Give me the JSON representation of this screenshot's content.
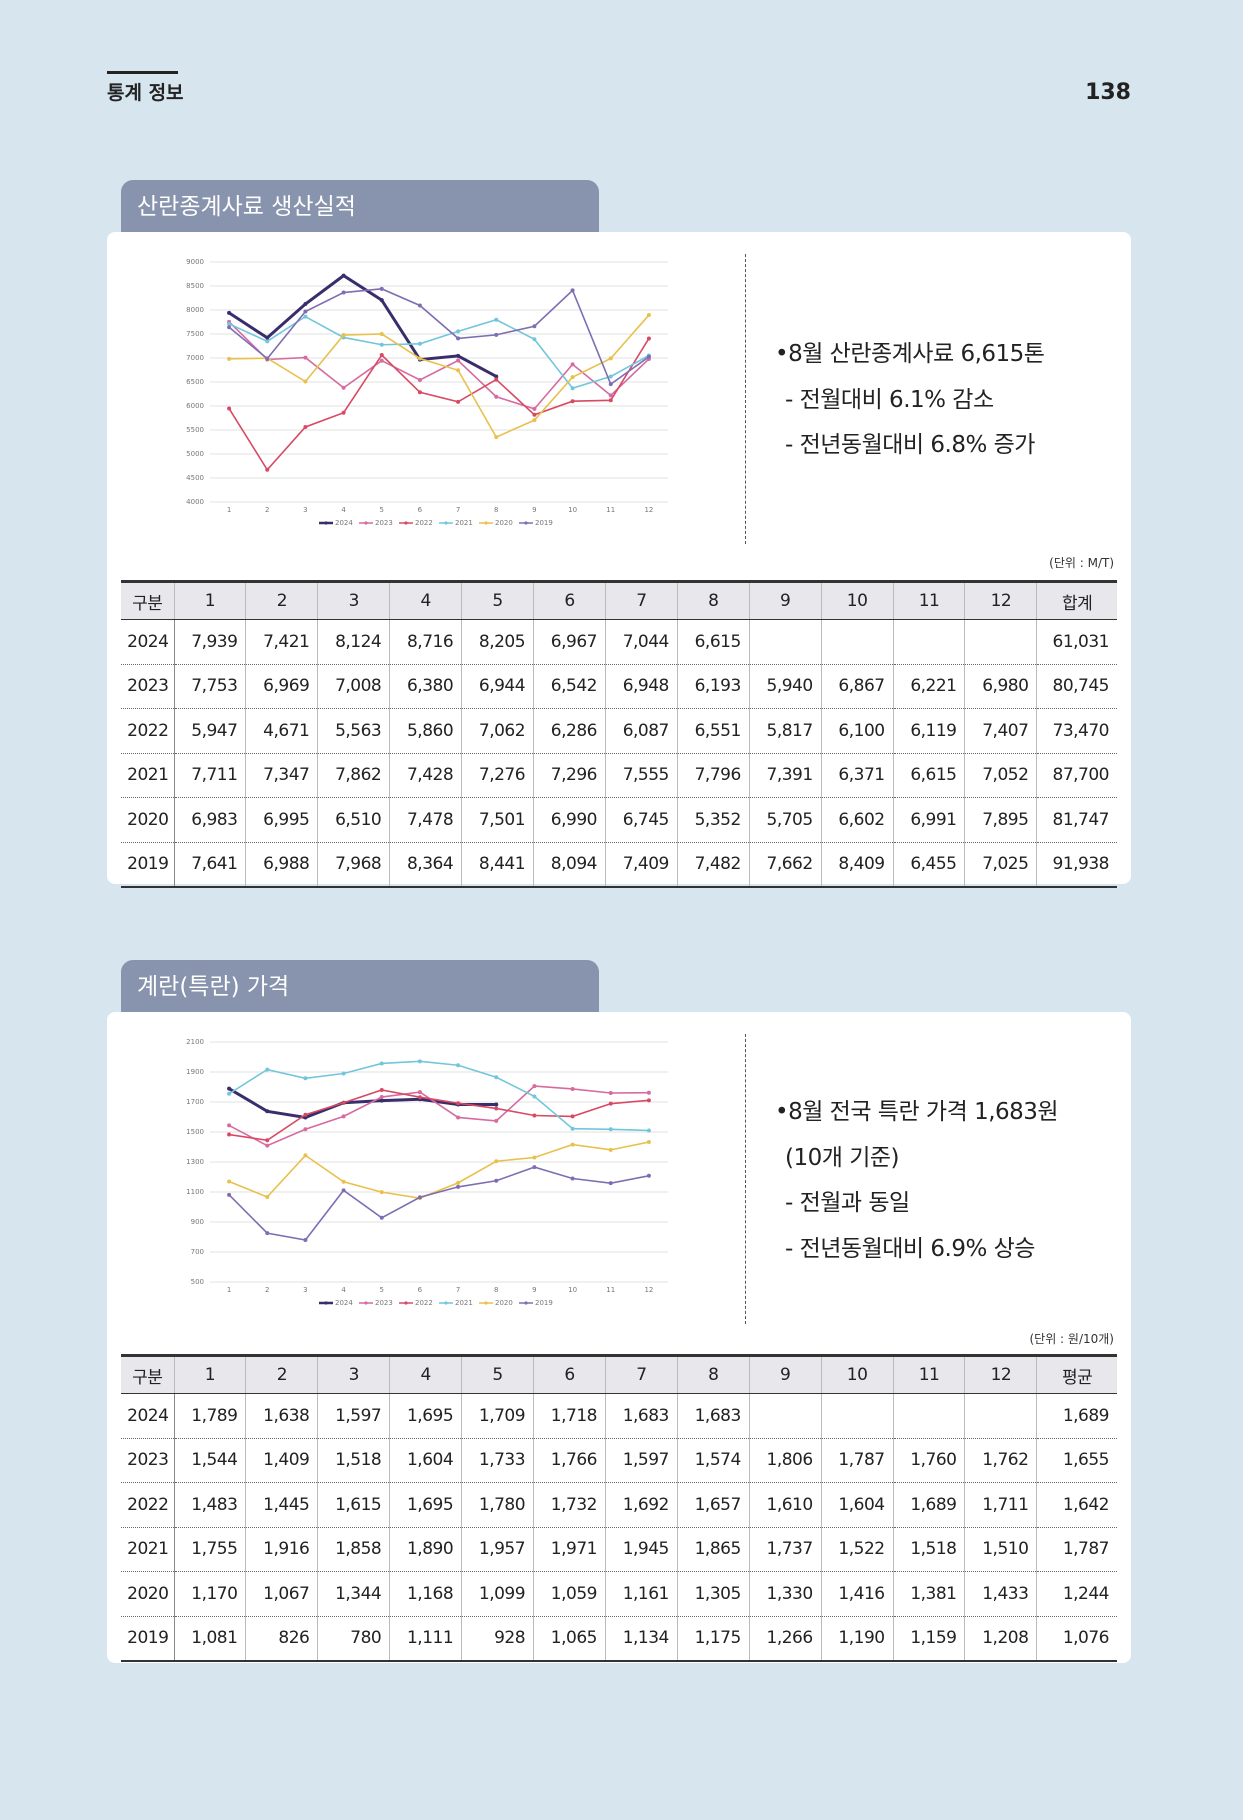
{
  "header": {
    "title": "통계 정보",
    "page": "138"
  },
  "chart_data": [
    {
      "type": "line",
      "categories": [
        "1",
        "2",
        "3",
        "4",
        "5",
        "6",
        "7",
        "8",
        "9",
        "10",
        "11",
        "12"
      ],
      "ylim": [
        4000,
        9000
      ],
      "yticks": [
        4000,
        4500,
        5000,
        5500,
        6000,
        6500,
        7000,
        7500,
        8000,
        8500,
        9000
      ],
      "grid": true,
      "legend": "bottom",
      "series": [
        {
          "name": "2024",
          "color": "#3a2d6b",
          "values": [
            7939,
            7421,
            8124,
            8716,
            8205,
            6967,
            7044,
            6615,
            null,
            null,
            null,
            null
          ]
        },
        {
          "name": "2023",
          "color": "#d56ba0",
          "values": [
            7753,
            6969,
            7008,
            6380,
            6944,
            6542,
            6948,
            6193,
            5940,
            6867,
            6221,
            6980
          ]
        },
        {
          "name": "2022",
          "color": "#d84a63",
          "values": [
            5947,
            4671,
            5563,
            5860,
            7062,
            6286,
            6087,
            6551,
            5817,
            6100,
            6119,
            7407
          ]
        },
        {
          "name": "2021",
          "color": "#72c6dc",
          "values": [
            7711,
            7347,
            7862,
            7428,
            7276,
            7296,
            7555,
            7796,
            7391,
            6371,
            6615,
            7052
          ]
        },
        {
          "name": "2020",
          "color": "#e8c14c",
          "values": [
            6983,
            6995,
            6510,
            7478,
            7501,
            6990,
            6745,
            5352,
            5705,
            6602,
            6991,
            7895
          ]
        },
        {
          "name": "2019",
          "color": "#7f6db3",
          "values": [
            7641,
            6988,
            7968,
            8364,
            8441,
            8094,
            7409,
            7482,
            7662,
            8409,
            6455,
            7025
          ]
        }
      ]
    },
    {
      "type": "line",
      "categories": [
        "1",
        "2",
        "3",
        "4",
        "5",
        "6",
        "7",
        "8",
        "9",
        "10",
        "11",
        "12"
      ],
      "ylim": [
        500,
        2100
      ],
      "yticks": [
        500,
        700,
        900,
        1100,
        1300,
        1500,
        1700,
        1900,
        2100
      ],
      "grid": true,
      "legend": "bottom",
      "series": [
        {
          "name": "2024",
          "color": "#3a2d6b",
          "values": [
            1789,
            1638,
            1597,
            1695,
            1709,
            1718,
            1683,
            1683,
            null,
            null,
            null,
            null
          ]
        },
        {
          "name": "2023",
          "color": "#d56ba0",
          "values": [
            1544,
            1409,
            1518,
            1604,
            1733,
            1766,
            1597,
            1574,
            1806,
            1787,
            1760,
            1762
          ]
        },
        {
          "name": "2022",
          "color": "#d84a63",
          "values": [
            1483,
            1445,
            1615,
            1695,
            1780,
            1732,
            1692,
            1657,
            1610,
            1604,
            1689,
            1711
          ]
        },
        {
          "name": "2021",
          "color": "#72c6dc",
          "values": [
            1755,
            1916,
            1858,
            1890,
            1957,
            1971,
            1945,
            1865,
            1737,
            1522,
            1518,
            1510
          ]
        },
        {
          "name": "2020",
          "color": "#e8c14c",
          "values": [
            1170,
            1067,
            1344,
            1168,
            1099,
            1059,
            1161,
            1305,
            1330,
            1416,
            1381,
            1433
          ]
        },
        {
          "name": "2019",
          "color": "#7f6db3",
          "values": [
            1081,
            826,
            780,
            1111,
            928,
            1065,
            1134,
            1175,
            1266,
            1190,
            1159,
            1208
          ]
        }
      ]
    }
  ],
  "sections": [
    {
      "title": "산란종계사료 생산실적",
      "bullets": [
        "•8월 산란종계사료 6,615톤",
        "- 전월대비 6.1% 감소",
        "- 전년동월대비 6.8% 증가"
      ],
      "unit": "(단위 : M/T)",
      "table": {
        "header": [
          "구분",
          "1",
          "2",
          "3",
          "4",
          "5",
          "6",
          "7",
          "8",
          "9",
          "10",
          "11",
          "12",
          "합계"
        ],
        "rows": [
          [
            "2024",
            "7,939",
            "7,421",
            "8,124",
            "8,716",
            "8,205",
            "6,967",
            "7,044",
            "6,615",
            null,
            null,
            null,
            null,
            "61,031"
          ],
          [
            "2023",
            "7,753",
            "6,969",
            "7,008",
            "6,380",
            "6,944",
            "6,542",
            "6,948",
            "6,193",
            "5,940",
            "6,867",
            "6,221",
            "6,980",
            "80,745"
          ],
          [
            "2022",
            "5,947",
            "4,671",
            "5,563",
            "5,860",
            "7,062",
            "6,286",
            "6,087",
            "6,551",
            "5,817",
            "6,100",
            "6,119",
            "7,407",
            "73,470"
          ],
          [
            "2021",
            "7,711",
            "7,347",
            "7,862",
            "7,428",
            "7,276",
            "7,296",
            "7,555",
            "7,796",
            "7,391",
            "6,371",
            "6,615",
            "7,052",
            "87,700"
          ],
          [
            "2020",
            "6,983",
            "6,995",
            "6,510",
            "7,478",
            "7,501",
            "6,990",
            "6,745",
            "5,352",
            "5,705",
            "6,602",
            "6,991",
            "7,895",
            "81,747"
          ],
          [
            "2019",
            "7,641",
            "6,988",
            "7,968",
            "8,364",
            "8,441",
            "8,094",
            "7,409",
            "7,482",
            "7,662",
            "8,409",
            "6,455",
            "7,025",
            "91,938"
          ]
        ]
      }
    },
    {
      "title": "계란(특란) 가격",
      "bullets": [
        "•8월 전국 특란 가격 1,683원",
        "(10개 기준)",
        "- 전월과 동일",
        "- 전년동월대비 6.9% 상승"
      ],
      "unit": "(단위 : 원/10개)",
      "table": {
        "header": [
          "구분",
          "1",
          "2",
          "3",
          "4",
          "5",
          "6",
          "7",
          "8",
          "9",
          "10",
          "11",
          "12",
          "평균"
        ],
        "rows": [
          [
            "2024",
            "1,789",
            "1,638",
            "1,597",
            "1,695",
            "1,709",
            "1,718",
            "1,683",
            "1,683",
            null,
            null,
            null,
            null,
            "1,689"
          ],
          [
            "2023",
            "1,544",
            "1,409",
            "1,518",
            "1,604",
            "1,733",
            "1,766",
            "1,597",
            "1,574",
            "1,806",
            "1,787",
            "1,760",
            "1,762",
            "1,655"
          ],
          [
            "2022",
            "1,483",
            "1,445",
            "1,615",
            "1,695",
            "1,780",
            "1,732",
            "1,692",
            "1,657",
            "1,610",
            "1,604",
            "1,689",
            "1,711",
            "1,642"
          ],
          [
            "2021",
            "1,755",
            "1,916",
            "1,858",
            "1,890",
            "1,957",
            "1,971",
            "1,945",
            "1,865",
            "1,737",
            "1,522",
            "1,518",
            "1,510",
            "1,787"
          ],
          [
            "2020",
            "1,170",
            "1,067",
            "1,344",
            "1,168",
            "1,099",
            "1,059",
            "1,161",
            "1,305",
            "1,330",
            "1,416",
            "1,381",
            "1,433",
            "1,244"
          ],
          [
            "2019",
            "1,081",
            "826",
            "780",
            "1,111",
            "928",
            "1,065",
            "1,134",
            "1,175",
            "1,266",
            "1,190",
            "1,159",
            "1,208",
            "1,076"
          ]
        ]
      }
    }
  ]
}
